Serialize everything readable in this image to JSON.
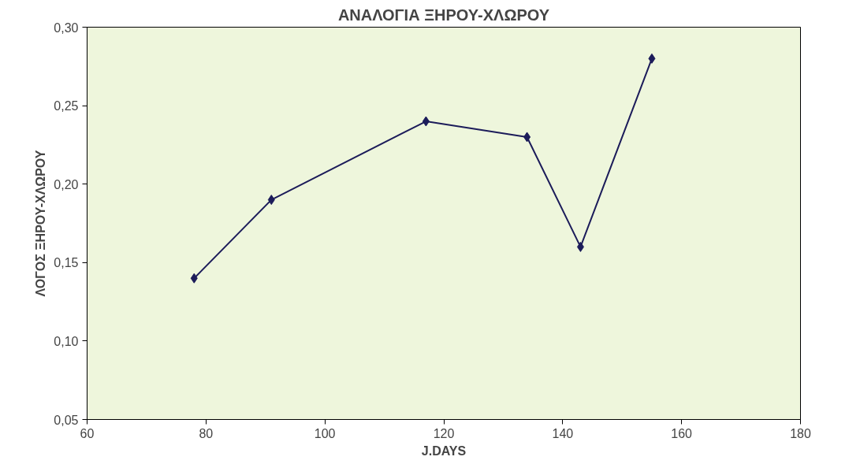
{
  "chart_data": {
    "type": "line",
    "title": "ΑΝΑΛΟΓΙΑ ΞΗΡΟΥ-ΧΛΩΡΟΥ",
    "xlabel": "J.DAYS",
    "ylabel": "ΛΟΓΟΣ ΞΗΡΟΥ-ΧΛΩΡΟΥ",
    "x": [
      78,
      91,
      117,
      134,
      143,
      155
    ],
    "series": [
      {
        "color": "#1c1c5a",
        "values": [
          0.14,
          0.19,
          0.24,
          0.23,
          0.16,
          0.28
        ]
      }
    ],
    "xlim": [
      60,
      180
    ],
    "xticks": [
      60,
      80,
      100,
      120,
      140,
      160,
      180
    ],
    "ylim": [
      0.05,
      0.3
    ],
    "yticks": [
      {
        "value": 0.05,
        "label": "0,05"
      },
      {
        "value": 0.1,
        "label": "0,10"
      },
      {
        "value": 0.15,
        "label": "0,15"
      },
      {
        "value": 0.2,
        "label": "0,20"
      },
      {
        "value": 0.25,
        "label": "0,25"
      },
      {
        "value": 0.3,
        "label": "0,30"
      }
    ],
    "grid": false,
    "marker": "diamond",
    "line_style": "solid"
  }
}
